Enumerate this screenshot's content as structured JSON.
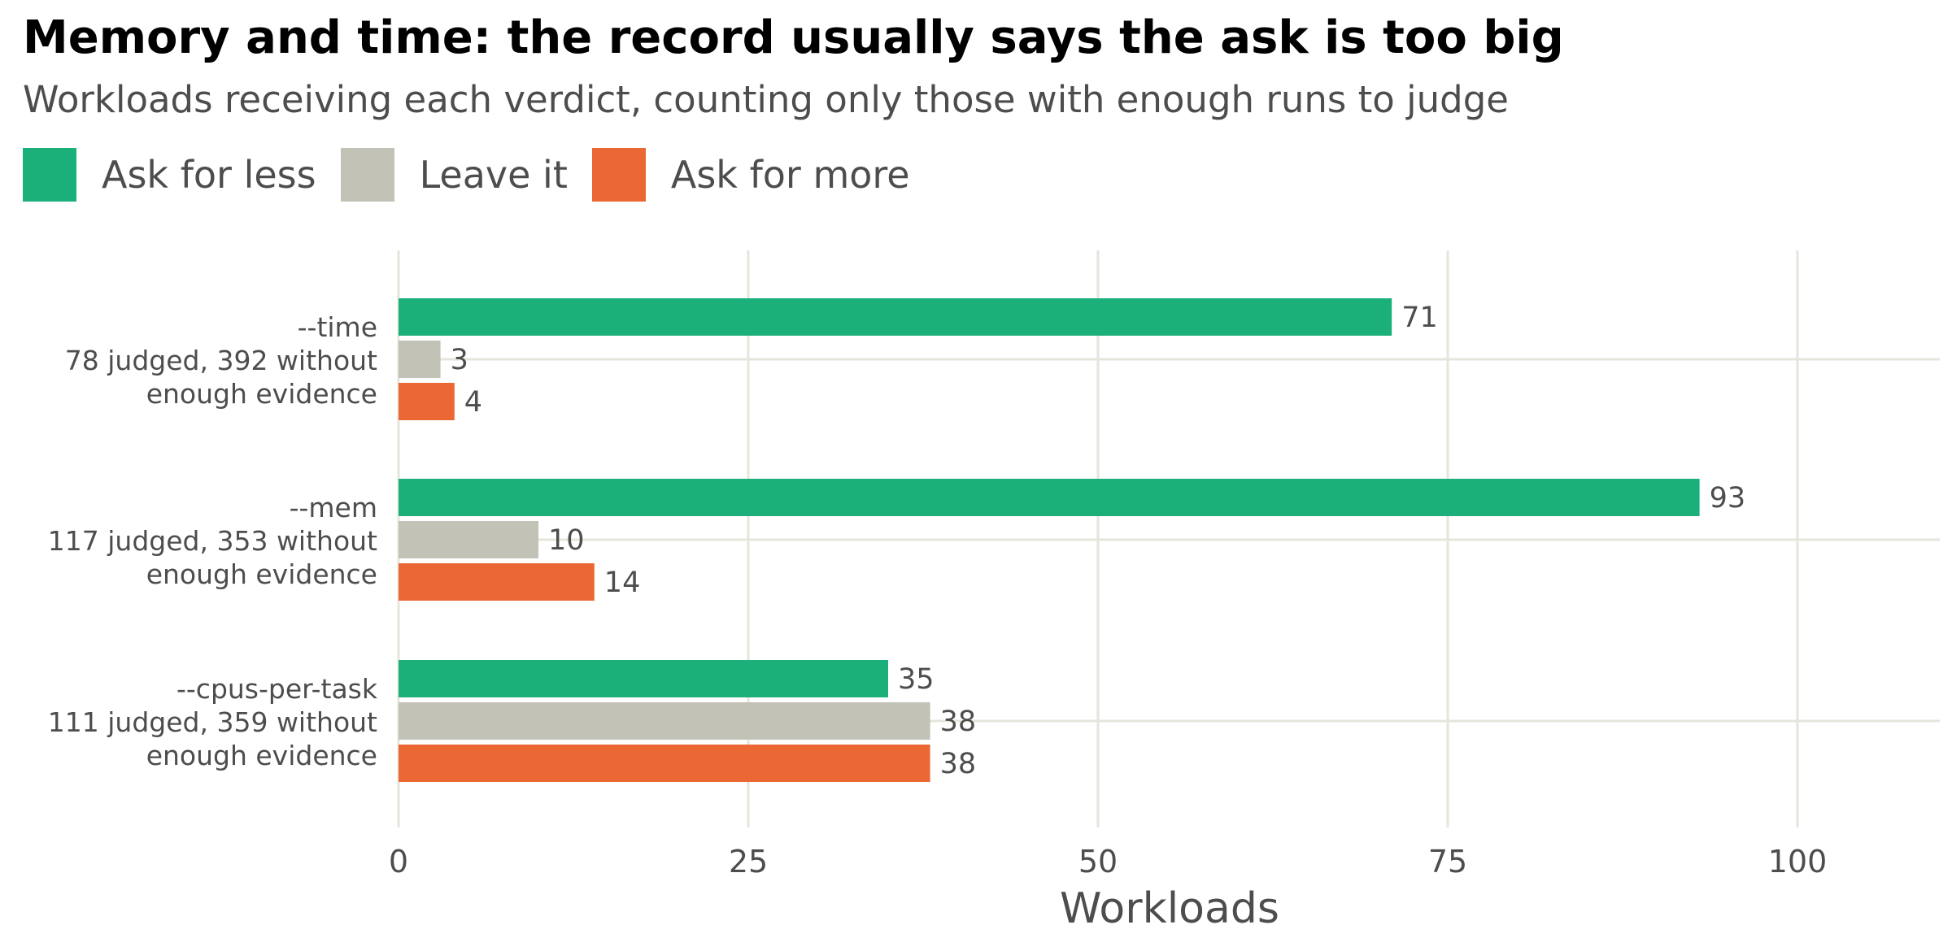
{
  "chart_data": {
    "type": "bar",
    "orientation": "horizontal",
    "title": "Memory and time: the record usually says the ask is too big",
    "subtitle": "Workloads receiving each verdict, counting only those with enough runs to judge",
    "xlabel": "Workloads",
    "ylabel": "",
    "xlim": [
      0,
      110
    ],
    "xticks": [
      0,
      25,
      50,
      75,
      100
    ],
    "grid": true,
    "legend_position": "top-left",
    "categories": [
      {
        "name": "--time",
        "detail": [
          "78 judged, 392 without",
          "enough evidence"
        ]
      },
      {
        "name": "--mem",
        "detail": [
          "117 judged, 353 without",
          "enough evidence"
        ]
      },
      {
        "name": "--cpus-per-task",
        "detail": [
          "111 judged, 359 without",
          "enough evidence"
        ]
      }
    ],
    "series": [
      {
        "name": "Ask for less",
        "color": "#1bb07a",
        "values": [
          71,
          93,
          35
        ]
      },
      {
        "name": "Leave it",
        "color": "#c2c2b6",
        "values": [
          3,
          10,
          38
        ]
      },
      {
        "name": "Ask for more",
        "color": "#eb6835",
        "values": [
          4,
          14,
          38
        ]
      }
    ]
  }
}
